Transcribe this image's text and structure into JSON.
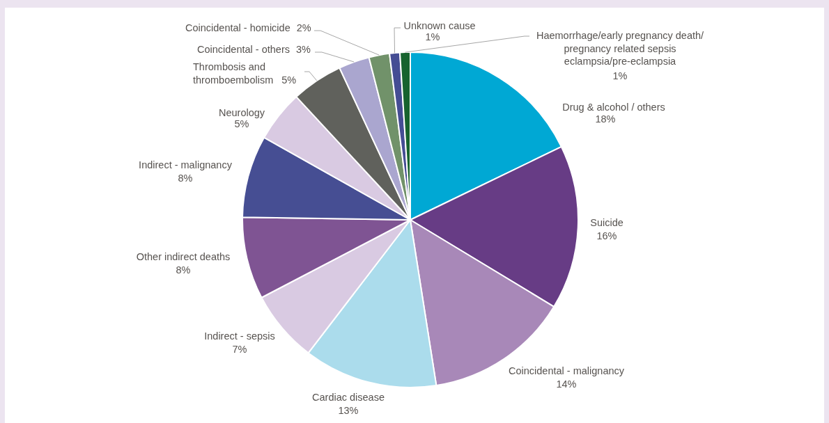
{
  "chart_data": {
    "type": "pie",
    "categories": [
      "Drug & alcohol / others",
      "Suicide",
      "Coincidental - malignancy",
      "Cardiac disease",
      "Indirect - sepsis",
      "Other indirect deaths",
      "Indirect - malignancy",
      "Neurology",
      "Thrombosis and\nthromboembolism",
      "Coincidental - others",
      "Coincidental - homicide",
      "Unknown cause",
      "Haemorrhage/early pregnancy death/\npregnancy related sepsis\neclampsia/pre-eclampsia"
    ],
    "values": [
      18,
      16,
      14,
      13,
      7,
      8,
      8,
      5,
      5,
      3,
      2,
      1,
      1
    ],
    "value_labels": [
      "18%",
      "16%",
      "14%",
      "13%",
      "7%",
      "8%",
      "8%",
      "5%",
      "5%",
      "3%",
      "2%",
      "1%",
      "1%"
    ],
    "colors": [
      "#00a8d4",
      "#673c85",
      "#a888b8",
      "#abdcec",
      "#d9cae2",
      "#7f5493",
      "#464e93",
      "#d9cae2",
      "#60615c",
      "#aaa6cf",
      "#71926a",
      "#454d94",
      "#17632f"
    ]
  }
}
